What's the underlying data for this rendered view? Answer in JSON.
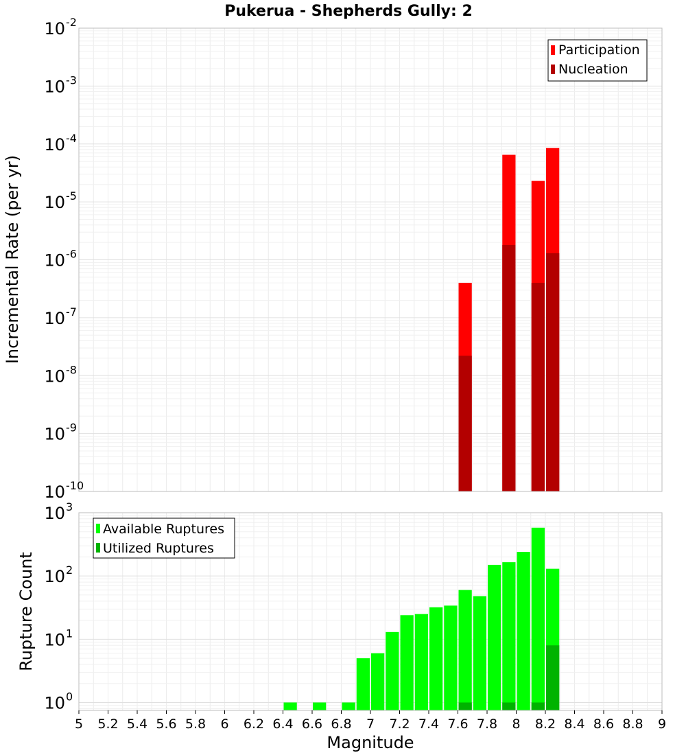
{
  "chart_data": [
    {
      "type": "bar",
      "title": "Pukerua - Shepherds Gully: 2",
      "xlabel": "",
      "ylabel": "Incremental Rate (per yr)",
      "yscale": "log",
      "ylim": [
        1e-10,
        0.01
      ],
      "xlim": [
        5,
        9
      ],
      "bar_width": 0.1,
      "legend_position": "top-right",
      "series": [
        {
          "name": "Participation",
          "color": "#ff0000",
          "x": [
            7.65,
            7.95,
            8.15,
            8.25
          ],
          "values": [
            4e-07,
            6.5e-05,
            2.3e-05,
            8.5e-05
          ]
        },
        {
          "name": "Nucleation",
          "color": "#b30000",
          "x": [
            7.65,
            7.95,
            8.15,
            8.25
          ],
          "values": [
            2.2e-08,
            1.8e-06,
            4e-07,
            1.3e-06
          ]
        }
      ],
      "y_ticks": [
        {
          "base": "10",
          "exp": "-10",
          "value": 1e-10
        },
        {
          "base": "10",
          "exp": "-9",
          "value": 1e-09
        },
        {
          "base": "10",
          "exp": "-8",
          "value": 1e-08
        },
        {
          "base": "10",
          "exp": "-7",
          "value": 1e-07
        },
        {
          "base": "10",
          "exp": "-6",
          "value": 1e-06
        },
        {
          "base": "10",
          "exp": "-5",
          "value": 1e-05
        },
        {
          "base": "10",
          "exp": "-4",
          "value": 0.0001
        },
        {
          "base": "10",
          "exp": "-3",
          "value": 0.001
        },
        {
          "base": "10",
          "exp": "-2",
          "value": 0.01
        }
      ],
      "grid": true
    },
    {
      "type": "bar",
      "title": "",
      "xlabel": "Magnitude",
      "ylabel": "Rupture Count",
      "yscale": "log",
      "ylim": [
        0.75,
        1000
      ],
      "xlim": [
        5,
        9
      ],
      "bar_width": 0.1,
      "legend_position": "top-left",
      "series": [
        {
          "name": "Available Ruptures",
          "color": "#00ff00",
          "x": [
            6.45,
            6.65,
            6.85,
            6.95,
            7.05,
            7.15,
            7.25,
            7.35,
            7.45,
            7.55,
            7.65,
            7.75,
            7.85,
            7.95,
            8.05,
            8.15,
            8.25
          ],
          "values": [
            1,
            1,
            1,
            5,
            6,
            13,
            24,
            25,
            32,
            34,
            60,
            48,
            150,
            165,
            240,
            580,
            130
          ]
        },
        {
          "name": "Utilized Ruptures",
          "color": "#00b300",
          "x": [
            7.65,
            7.95,
            8.15,
            8.25
          ],
          "values": [
            1,
            1,
            1,
            8
          ]
        }
      ],
      "x_ticks": [
        "5",
        "5.2",
        "5.4",
        "5.6",
        "5.8",
        "6",
        "6.2",
        "6.4",
        "6.6",
        "6.8",
        "7",
        "7.2",
        "7.4",
        "7.6",
        "7.8",
        "8",
        "8.2",
        "8.4",
        "8.6",
        "8.8",
        "9"
      ],
      "y_ticks": [
        {
          "base": "10",
          "exp": "0",
          "value": 1
        },
        {
          "base": "10",
          "exp": "1",
          "value": 10
        },
        {
          "base": "10",
          "exp": "2",
          "value": 100
        },
        {
          "base": "10",
          "exp": "3",
          "value": 1000
        }
      ],
      "grid": true
    }
  ]
}
